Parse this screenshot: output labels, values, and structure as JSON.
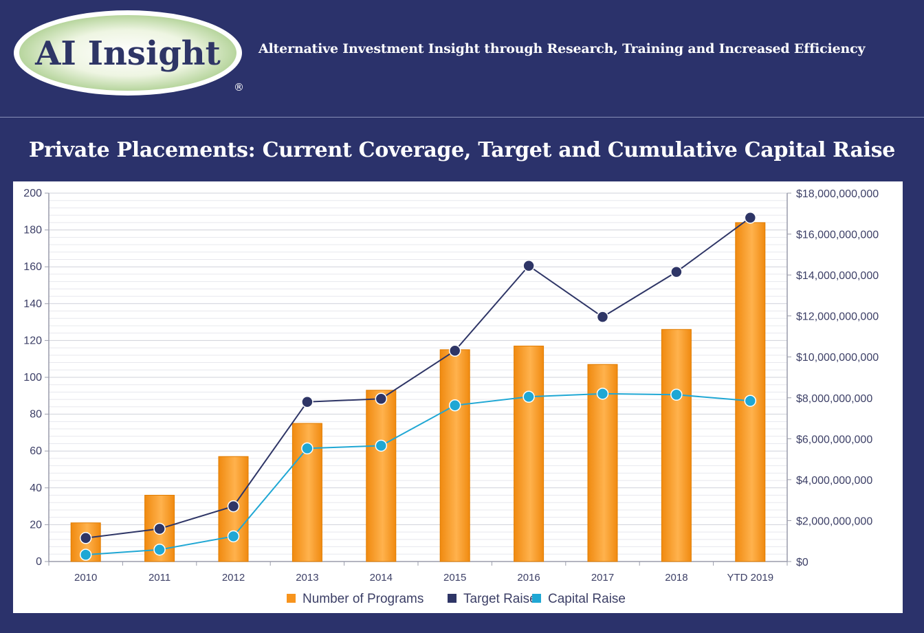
{
  "header": {
    "logo_text": "AI Insight",
    "logo_registered": "®",
    "tagline": "Alternative Investment Insight through Research, Training and Increased Efficiency"
  },
  "page_title": "Private Placements: Current Coverage, Target and Cumulative Capital Raise",
  "colors": {
    "background": "#2b326b",
    "bar": "#f7941d",
    "target_line": "#2e3566",
    "capital_line": "#1fa7d4"
  },
  "chart_data": {
    "type": "bar",
    "title": "",
    "categories": [
      "2010",
      "2011",
      "2012",
      "2013",
      "2014",
      "2015",
      "2016",
      "2017",
      "2018",
      "YTD 2019"
    ],
    "series": [
      {
        "name": "Number of Programs",
        "type": "bar",
        "axis": "left",
        "values": [
          21,
          36,
          57,
          75,
          93,
          115,
          117,
          107,
          126,
          184
        ]
      },
      {
        "name": "Target Raise",
        "type": "line",
        "axis": "right",
        "values": [
          1150000000,
          1600000000,
          2700000000,
          7800000000,
          7950000000,
          10300000000,
          14450000000,
          11950000000,
          14150000000,
          16800000000
        ]
      },
      {
        "name": "Capital Raise",
        "type": "line",
        "axis": "right",
        "values": [
          330000000,
          580000000,
          1230000000,
          5530000000,
          5660000000,
          7630000000,
          8050000000,
          8200000000,
          8150000000,
          7850000000
        ]
      }
    ],
    "y_left": {
      "min": 0,
      "max": 200,
      "ticks": [
        "0",
        "20",
        "40",
        "60",
        "80",
        "100",
        "120",
        "140",
        "160",
        "180",
        "200"
      ]
    },
    "y_right": {
      "min": 0,
      "max": 18000000000,
      "ticks": [
        "$0",
        "$2,000,000,000",
        "$4,000,000,000",
        "$6,000,000,000",
        "$8,000,000,000",
        "$10,000,000,000",
        "$12,000,000,000",
        "$14,000,000,000",
        "$16,000,000,000",
        "$18,000,000,000"
      ]
    },
    "grid": true,
    "legend": {
      "position": "bottom-center",
      "items": [
        "Number of Programs",
        "Target Raise",
        "Capital Raise"
      ]
    }
  }
}
